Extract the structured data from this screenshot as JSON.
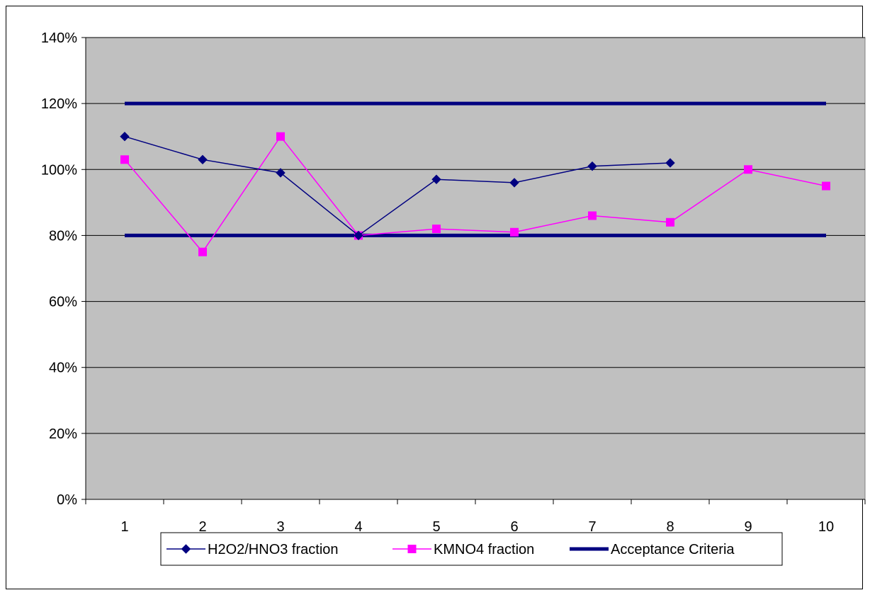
{
  "chart_data": {
    "type": "line",
    "title": "",
    "xlabel": "",
    "ylabel": "",
    "categories": [
      "1",
      "2",
      "3",
      "4",
      "5",
      "6",
      "7",
      "8",
      "9",
      "10"
    ],
    "y_ticks": [
      "0%",
      "20%",
      "40%",
      "60%",
      "80%",
      "100%",
      "120%",
      "140%"
    ],
    "ylim": [
      0,
      140
    ],
    "grid": true,
    "plot_background": "#C0C0C0",
    "legend_position": "bottom",
    "series": [
      {
        "name": "H2O2/HNO3 fraction",
        "color": "#000080",
        "marker": "diamond",
        "values": [
          110,
          103,
          99,
          80,
          97,
          96,
          101,
          102,
          null,
          null
        ]
      },
      {
        "name": "KMNO4 fraction",
        "color": "#FF00FF",
        "marker": "square",
        "values": [
          103,
          75,
          110,
          80,
          82,
          81,
          86,
          84,
          100,
          95
        ]
      },
      {
        "name": "Acceptance Criteria",
        "color": "#000080",
        "marker": "none",
        "upper": 120,
        "lower": 80
      }
    ]
  }
}
